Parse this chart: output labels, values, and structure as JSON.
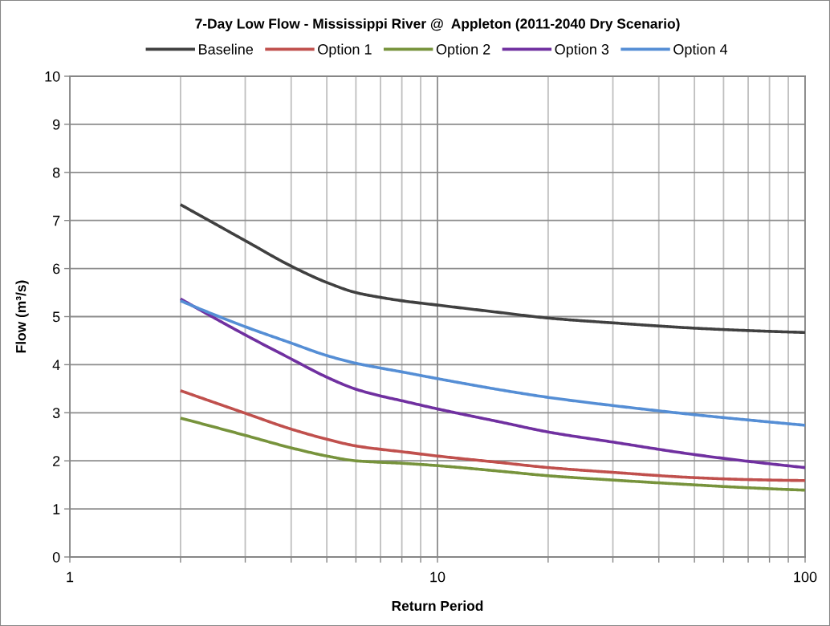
{
  "chart_data": {
    "type": "line",
    "title": "7-Day Low Flow - Mississippi River @  Appleton (2011-2040 Dry Scenario)",
    "xlabel": "Return Period",
    "ylabel": "Flow (m³/s)",
    "x": [
      2,
      3,
      4,
      5,
      6,
      7,
      8,
      10,
      15,
      20,
      30,
      50,
      70,
      100
    ],
    "series": [
      {
        "name": "Baseline",
        "color": "#404040",
        "values": [
          7.33,
          6.58,
          6.05,
          5.71,
          5.5,
          5.4,
          5.33,
          5.24,
          5.08,
          4.97,
          4.87,
          4.76,
          4.71,
          4.67
        ]
      },
      {
        "name": "Option 1",
        "color": "#c0504d",
        "values": [
          3.46,
          2.99,
          2.66,
          2.45,
          2.31,
          2.24,
          2.19,
          2.1,
          1.96,
          1.86,
          1.76,
          1.65,
          1.61,
          1.59
        ]
      },
      {
        "name": "Option 2",
        "color": "#77933c",
        "values": [
          2.89,
          2.53,
          2.27,
          2.1,
          2.0,
          1.97,
          1.95,
          1.9,
          1.78,
          1.69,
          1.6,
          1.5,
          1.44,
          1.39
        ]
      },
      {
        "name": "Option 3",
        "color": "#7030a0",
        "values": [
          5.37,
          4.62,
          4.12,
          3.74,
          3.49,
          3.35,
          3.25,
          3.08,
          2.8,
          2.6,
          2.39,
          2.13,
          1.99,
          1.86
        ]
      },
      {
        "name": "Option 4",
        "color": "#558ed5",
        "values": [
          5.33,
          4.79,
          4.45,
          4.19,
          4.03,
          3.93,
          3.85,
          3.71,
          3.47,
          3.32,
          3.15,
          2.96,
          2.85,
          2.74
        ]
      }
    ],
    "log": "x",
    "xlim": [
      1,
      100
    ],
    "xticks": [
      1,
      {
        "value": 2,
        "label": null
      },
      {
        "value": 3,
        "label": null
      },
      {
        "value": 4,
        "label": null
      },
      {
        "value": 5,
        "label": null
      },
      {
        "value": 6,
        "label": null
      },
      {
        "value": 7,
        "label": null
      },
      {
        "value": 8,
        "label": null
      },
      {
        "value": 9,
        "label": null
      },
      10,
      {
        "value": 20,
        "label": null
      },
      {
        "value": 30,
        "label": null
      },
      {
        "value": 40,
        "label": null
      },
      {
        "value": 50,
        "label": null
      },
      {
        "value": 60,
        "label": null
      },
      {
        "value": 70,
        "label": null
      },
      {
        "value": 80,
        "label": null
      },
      {
        "value": 90,
        "label": null
      },
      100
    ],
    "ylim": [
      0,
      10
    ],
    "yticks": [
      0,
      1,
      2,
      3,
      4,
      5,
      6,
      7,
      8,
      9,
      10
    ],
    "grid": true,
    "legend": "top"
  }
}
